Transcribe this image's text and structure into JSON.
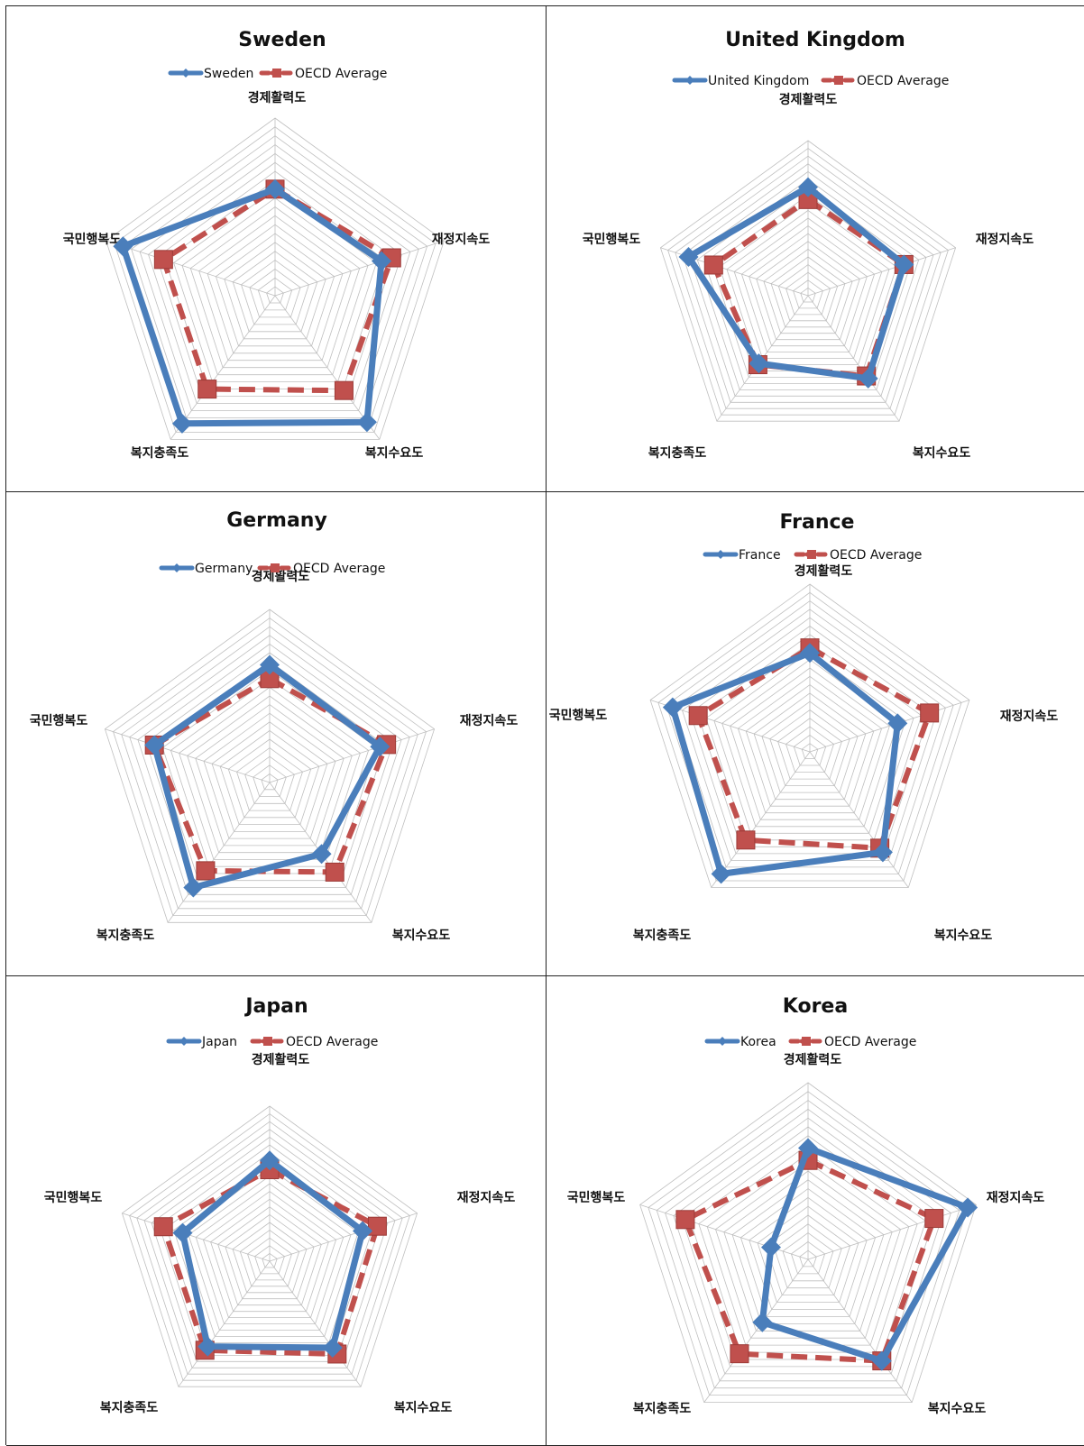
{
  "colors": {
    "country": "#4a7ebb",
    "oecd": "#c0504d",
    "grid": "#bfbfbf"
  },
  "chart_data": [
    {
      "type": "radar",
      "title": "Sweden",
      "axes": [
        "경제활력도",
        "재정지속도",
        "복지수요도",
        "복지충족도",
        "국민행복도"
      ],
      "rlim": [
        0,
        10
      ],
      "series": [
        {
          "name": "Sweden",
          "values": [
            6.0,
            6.3,
            8.8,
            8.9,
            9.0
          ]
        },
        {
          "name": "OECD Average",
          "values": [
            6.0,
            6.9,
            6.6,
            6.5,
            6.6
          ]
        }
      ]
    },
    {
      "type": "radar",
      "title": "United Kingdom",
      "axes": [
        "경제활력도",
        "재정지속도",
        "복지수요도",
        "복지충족도",
        "국민행복도"
      ],
      "rlim": [
        0,
        10
      ],
      "series": [
        {
          "name": "United Kingdom",
          "values": [
            7.0,
            6.5,
            6.6,
            5.4,
            8.1
          ]
        },
        {
          "name": "OECD Average",
          "values": [
            6.2,
            6.5,
            6.4,
            5.5,
            6.4
          ]
        }
      ]
    },
    {
      "type": "radar",
      "title": "Germany",
      "axes": [
        "경제활력도",
        "재정지속도",
        "복지수요도",
        "복지충족도",
        "국민행복도"
      ],
      "rlim": [
        0,
        10
      ],
      "series": [
        {
          "name": "Germany",
          "values": [
            6.8,
            6.7,
            5.1,
            7.5,
            7.0
          ]
        },
        {
          "name": "OECD Average",
          "values": [
            6.0,
            7.1,
            6.4,
            6.3,
            7.0
          ]
        }
      ]
    },
    {
      "type": "radar",
      "title": "France",
      "axes": [
        "경제활력도",
        "재정지속도",
        "복지수요도",
        "복지충족도",
        "국민행복도"
      ],
      "rlim": [
        0,
        10
      ],
      "series": [
        {
          "name": "France",
          "values": [
            5.9,
            5.5,
            7.4,
            9.0,
            8.6
          ]
        },
        {
          "name": "OECD Average",
          "values": [
            6.2,
            7.5,
            7.1,
            6.5,
            7.0
          ]
        }
      ]
    },
    {
      "type": "radar",
      "title": "Japan",
      "axes": [
        "경제활력도",
        "재정지속도",
        "복지수요도",
        "복지충족도",
        "국민행복도"
      ],
      "rlim": [
        0,
        10
      ],
      "series": [
        {
          "name": "Japan",
          "values": [
            6.5,
            6.3,
            6.9,
            6.8,
            5.9
          ]
        },
        {
          "name": "OECD Average",
          "values": [
            5.9,
            7.3,
            7.4,
            7.1,
            7.2
          ]
        }
      ]
    },
    {
      "type": "radar",
      "title": "Korea",
      "axes": [
        "경제활력도",
        "재정지속도",
        "복지수요도",
        "복지충족도",
        "국민행복도"
      ],
      "rlim": [
        0,
        10
      ],
      "series": [
        {
          "name": "Korea",
          "values": [
            6.3,
            9.5,
            7.1,
            4.4,
            2.2
          ]
        },
        {
          "name": "OECD Average",
          "values": [
            5.6,
            7.5,
            7.1,
            6.6,
            7.3
          ]
        }
      ]
    }
  ]
}
